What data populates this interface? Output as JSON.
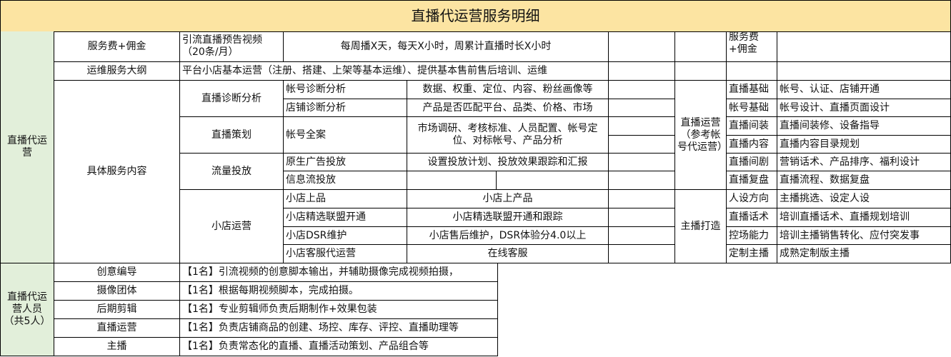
{
  "title": "直播代运营服务明细",
  "section1": {
    "label": "直播代运营",
    "row_fee": {
      "label": "服务费+佣金",
      "video": "引流直播预告视频（20条/月）",
      "schedule": "每周播X天，每天X小时，周累计直播时长X小时"
    },
    "row_outline": {
      "label": "运维服务大纲",
      "text": "平台小店基本运营（注册、搭建、上架等基本运维）、提供基本售前售后培训、运维"
    },
    "details_label": "具体服务内容",
    "groups": [
      {
        "name": "直播诊断分析",
        "items": [
          {
            "item": "帐号诊断分析",
            "desc": "数据、权重、定位、内容、粉丝画像等"
          },
          {
            "item": "店铺诊断分析",
            "desc": "产品是否匹配平台、品类、价格、市场"
          }
        ]
      },
      {
        "name": "直播策划",
        "items": [
          {
            "item": "帐号全案",
            "desc": "市场调研、考核标准、人员配置、帐号定位、对标帐号、产品分析"
          }
        ]
      },
      {
        "name": "流量投放",
        "items": [
          {
            "item": "原生广告投放",
            "desc": "设置投放计划、投放效果跟踪和汇报"
          },
          {
            "item": "信息流投放",
            "desc": ""
          }
        ]
      },
      {
        "name": "小店运营",
        "items": [
          {
            "item": "小店上品",
            "desc": "小店上产品"
          },
          {
            "item": "小店精选联盟开通",
            "desc": "小店精选联盟开通和跟踪"
          },
          {
            "item": "小店DSR维护",
            "desc": "小店售后维护，DSR体验分4.0以上"
          },
          {
            "item": "小店客服代运营",
            "desc": "在线客服"
          }
        ]
      }
    ]
  },
  "right": {
    "fee_label": "服务费+佣金",
    "live_ops": {
      "label": "直播运营（参考帐号代运营）",
      "items": [
        {
          "k": "直播基础",
          "v": "帐号、认证、店铺开通"
        },
        {
          "k": "帐号基础",
          "v": "帐号设计、直播页面设计"
        },
        {
          "k": "直播间装",
          "v": "直播间装修、设备指导"
        },
        {
          "k": "直播内容",
          "v": "直播内容目录规划"
        },
        {
          "k": "直播间剧",
          "v": "营销话术、产品排序、福利设计"
        },
        {
          "k": "直播复盘",
          "v": "直播流程、数据复盘"
        }
      ]
    },
    "host": {
      "label": "主播打造",
      "items": [
        {
          "k": "人设方向",
          "v": "主播挑选、设定人设"
        },
        {
          "k": "直播话术",
          "v": "培训直播话术、直播规划培训"
        },
        {
          "k": "控场能力",
          "v": "培训主播销售转化、应付突发事"
        },
        {
          "k": "定制主播",
          "v": "成熟定制版主播"
        }
      ]
    }
  },
  "staff": {
    "label": "直播代运营人员（共5人）",
    "rows": [
      {
        "role": "创意编导",
        "desc": "【1名】引流视频的创意脚本输出，并辅助摄像完成视频拍摄，"
      },
      {
        "role": "摄像团体",
        "desc": "【1名】根据每期视频脚本，完成拍摄。"
      },
      {
        "role": "后期剪辑",
        "desc": "【1名】专业剪辑师负责后期制作+效果包装"
      },
      {
        "role": "直播运营",
        "desc": "【1名】负责店铺商品的创建、场控、库存、评控、直播助理等"
      },
      {
        "role": "主播",
        "desc": "【1名】负责常态化的直播、直播活动策划、产品组合等"
      }
    ]
  }
}
